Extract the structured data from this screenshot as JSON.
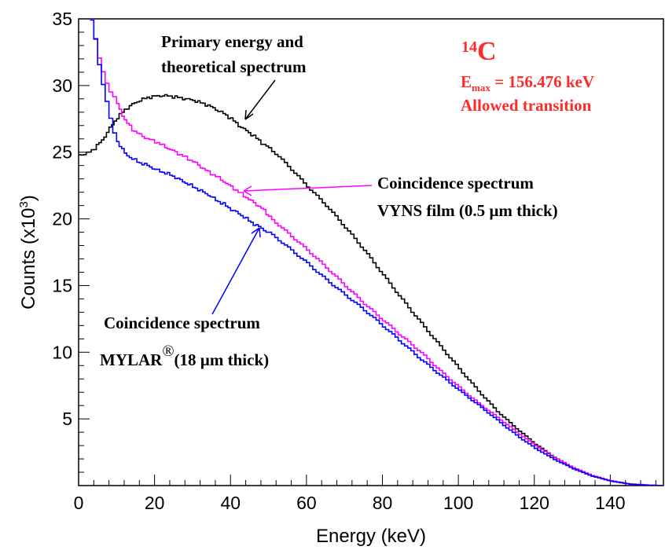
{
  "chart_data": {
    "type": "line",
    "xlabel": "Energy (keV)",
    "ylabel": "Counts (x10",
    "ylabel_exp": "3",
    "ylabel_close": ")",
    "xlim": [
      0,
      154
    ],
    "ylim": [
      0,
      35
    ],
    "x_ticks": [
      0,
      20,
      40,
      60,
      80,
      100,
      120,
      140
    ],
    "y_ticks": [
      5,
      10,
      15,
      20,
      25,
      30,
      35
    ],
    "grid": false,
    "series": [
      {
        "color": "#000000",
        "x": [
          0,
          2,
          4,
          6,
          8,
          10,
          12,
          14,
          16,
          18,
          20,
          22,
          24,
          26,
          28,
          30,
          32,
          34,
          36,
          38,
          40,
          42,
          44,
          46,
          48,
          50,
          55,
          60,
          65,
          70,
          75,
          80,
          85,
          90,
          95,
          100,
          105,
          110,
          115,
          120,
          125,
          130,
          135,
          140,
          145,
          150,
          154
        ],
        "y": [
          24.8,
          24.9,
          25.3,
          25.9,
          26.8,
          27.6,
          28.2,
          28.6,
          28.9,
          29.1,
          29.2,
          29.25,
          29.2,
          29.1,
          29.0,
          28.9,
          28.7,
          28.5,
          28.2,
          27.9,
          27.5,
          27.0,
          26.6,
          26.2,
          25.7,
          25.3,
          24.0,
          22.5,
          21.0,
          19.3,
          17.6,
          15.8,
          14.0,
          12.2,
          10.4,
          8.7,
          7.1,
          5.6,
          4.3,
          3.1,
          2.1,
          1.3,
          0.7,
          0.35,
          0.12,
          0.03,
          0
        ]
      },
      {
        "color": "#ff00ff",
        "x": [
          3,
          4,
          5,
          6,
          7,
          8,
          9,
          10,
          12,
          14,
          16,
          18,
          20,
          22,
          24,
          26,
          28,
          30,
          32,
          34,
          36,
          38,
          40,
          42,
          44,
          46,
          48,
          50,
          55,
          60,
          65,
          70,
          75,
          80,
          85,
          90,
          95,
          100,
          105,
          110,
          115,
          120,
          125,
          130,
          135,
          140,
          145,
          150,
          154
        ],
        "y": [
          35,
          33.5,
          32,
          31,
          30.2,
          29.6,
          29.2,
          28.6,
          27.4,
          26.7,
          26.3,
          26.0,
          25.8,
          25.5,
          25.2,
          24.9,
          24.6,
          24.3,
          23.9,
          23.5,
          23.2,
          22.8,
          22.4,
          22.0,
          21.6,
          21.2,
          20.8,
          20.2,
          18.9,
          17.6,
          16.3,
          15.0,
          13.7,
          12.4,
          11.1,
          9.9,
          8.6,
          7.4,
          6.2,
          5.1,
          4.0,
          3.0,
          2.1,
          1.35,
          0.75,
          0.35,
          0.12,
          0.03,
          0
        ]
      },
      {
        "color": "#0000ff",
        "x": [
          3,
          4,
          5,
          6,
          7,
          8,
          9,
          10,
          12,
          14,
          16,
          18,
          20,
          22,
          24,
          26,
          28,
          30,
          32,
          34,
          36,
          38,
          40,
          42,
          44,
          46,
          48,
          50,
          55,
          60,
          65,
          70,
          75,
          80,
          85,
          90,
          95,
          100,
          105,
          110,
          115,
          120,
          125,
          130,
          135,
          140,
          145,
          150,
          154
        ],
        "y": [
          35,
          33.5,
          31.5,
          30.0,
          28.8,
          27.6,
          26.5,
          25.8,
          24.9,
          24.5,
          24.2,
          24.0,
          23.7,
          23.5,
          23.3,
          23.0,
          22.7,
          22.4,
          22.1,
          21.8,
          21.4,
          21.1,
          20.7,
          20.4,
          20.0,
          19.6,
          19.3,
          18.9,
          17.8,
          16.7,
          15.5,
          14.3,
          13.1,
          11.9,
          10.7,
          9.5,
          8.3,
          7.1,
          6.0,
          4.9,
          3.8,
          2.8,
          1.95,
          1.25,
          0.7,
          0.32,
          0.1,
          0.02,
          0
        ]
      }
    ]
  },
  "annotations": {
    "primary_line1": "Primary energy and",
    "primary_line2": "theoretical spectrum",
    "isotope_mass": "14",
    "isotope_symbol": "C",
    "emax_prefix": "E",
    "emax_sub": "max",
    "emax_value": " = 156.476 keV",
    "transition": "Allowed transition",
    "vyns_line1": "Coincidence spectrum",
    "vyns_line2": "VYNS film (0.5  µm thick)",
    "mylar_line1": "Coincidence spectrum",
    "mylar_name": "MYLAR",
    "mylar_reg": "®",
    "mylar_thick": "(18  µm thick)"
  },
  "colors": {
    "primary": "#000000",
    "vyns": "#ff00ff",
    "mylar": "#0000ff",
    "isotope_text": "#ff2a2a"
  }
}
